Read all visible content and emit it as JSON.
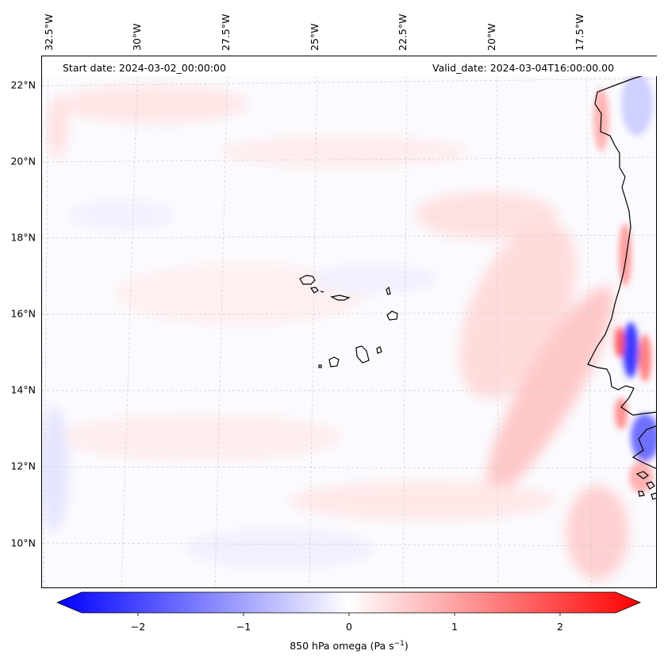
{
  "header": {
    "start_date": "Start date: 2024-03-02_00:00:00",
    "valid_date": "Valid_date: 2024-03-04T16:00:00.00"
  },
  "axes": {
    "latitude_labels": [
      "22°N",
      "20°N",
      "18°N",
      "16°N",
      "14°N",
      "12°N",
      "10°N"
    ],
    "longitude_labels": [
      "32.5°W",
      "30°W",
      "27.5°W",
      "25°W",
      "22.5°W",
      "20°W",
      "17.5°W"
    ]
  },
  "colorbar": {
    "label": "850 hPa omega (Pa s",
    "label_exponent": "−1",
    "label_close": ")",
    "ticks": [
      "−2",
      "−1",
      "0",
      "1",
      "2"
    ],
    "range": [
      -2.7,
      2.7
    ],
    "colormap": "bwr",
    "low_color": "#0000ff",
    "mid_color": "#ffffff",
    "high_color": "#ff0000"
  },
  "colors": {
    "coastline": "#000000",
    "gridline": "#cccccc",
    "background": "#fbfbff"
  }
}
